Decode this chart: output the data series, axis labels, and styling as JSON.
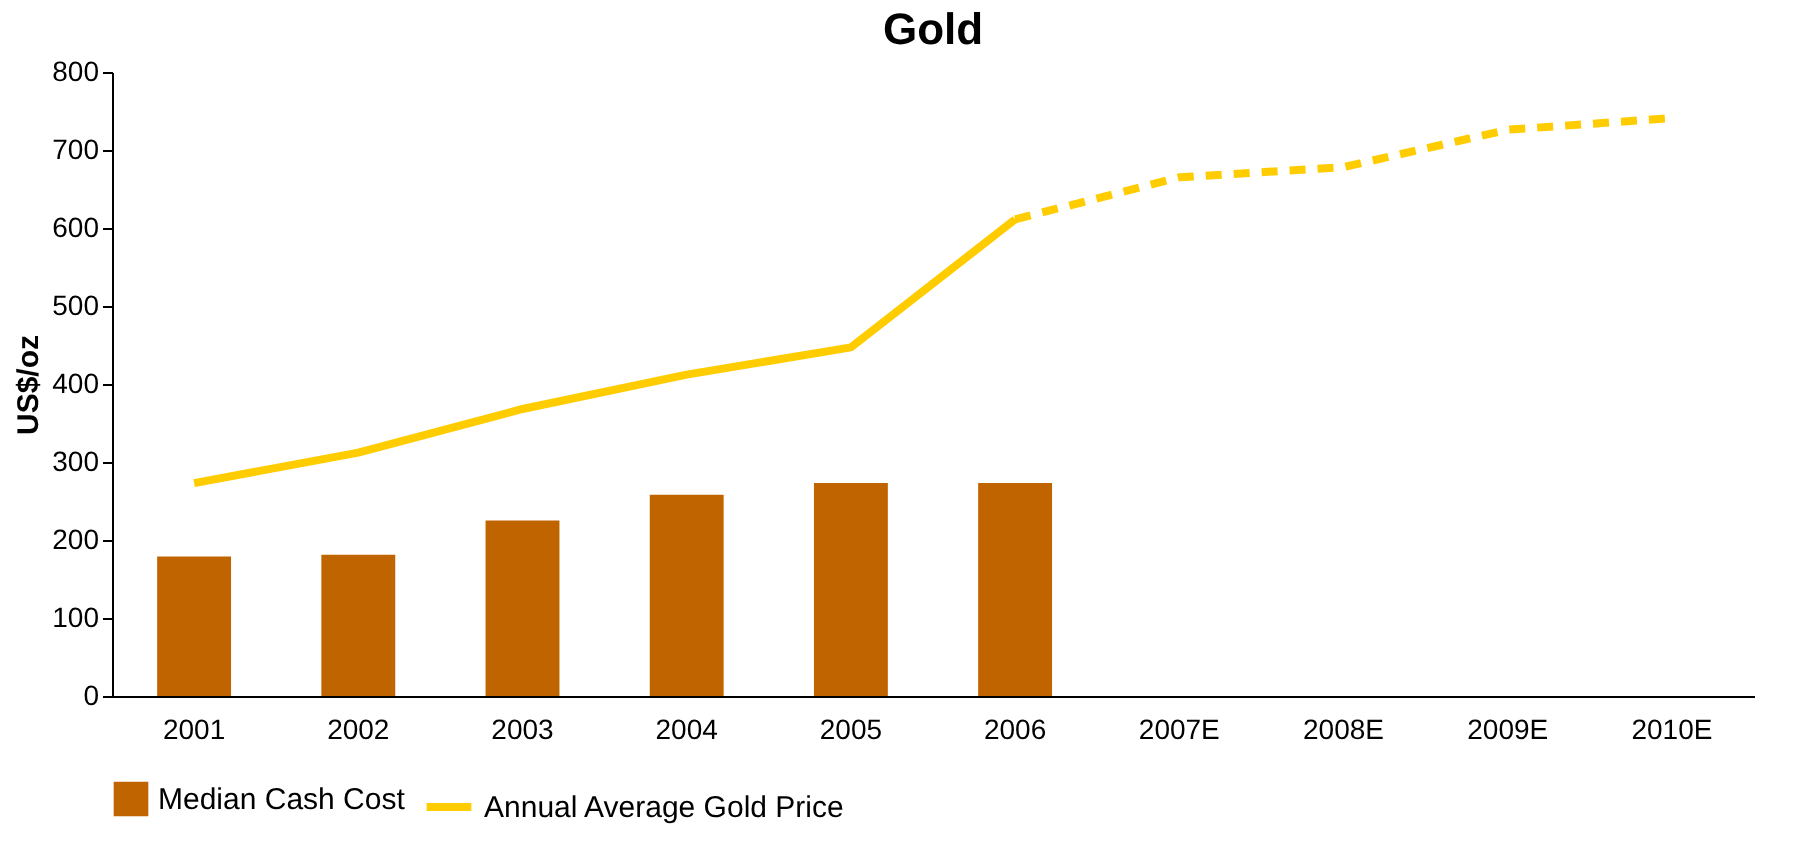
{
  "chart_data": {
    "type": "bar",
    "title": "Gold",
    "ylabel": "US$/oz",
    "categories": [
      "2001",
      "2002",
      "2003",
      "2004",
      "2005",
      "2006",
      "2007E",
      "2008E",
      "2009E",
      "2010E"
    ],
    "series": [
      {
        "name": "Median Cash Cost",
        "color": "#c06400",
        "values": [
          179,
          181,
          225,
          258,
          273,
          273,
          null,
          null,
          null,
          null
        ]
      },
      {
        "name": "Annual Average Gold Price",
        "type": "line",
        "color": "#ffcc00",
        "line_style": "solid",
        "values": [
          273,
          312,
          368,
          412,
          447,
          611,
          null,
          null,
          null,
          null
        ]
      },
      {
        "type": "line",
        "color": "#ffcc00",
        "line_style": "dashed",
        "values": [
          null,
          null,
          null,
          null,
          null,
          611,
          665,
          678,
          726,
          741
        ]
      }
    ],
    "ylim": [
      0,
      800
    ],
    "yticks": [
      0,
      100,
      200,
      300,
      400,
      500,
      600,
      700,
      800
    ],
    "grid": false,
    "legend": "bottom"
  }
}
